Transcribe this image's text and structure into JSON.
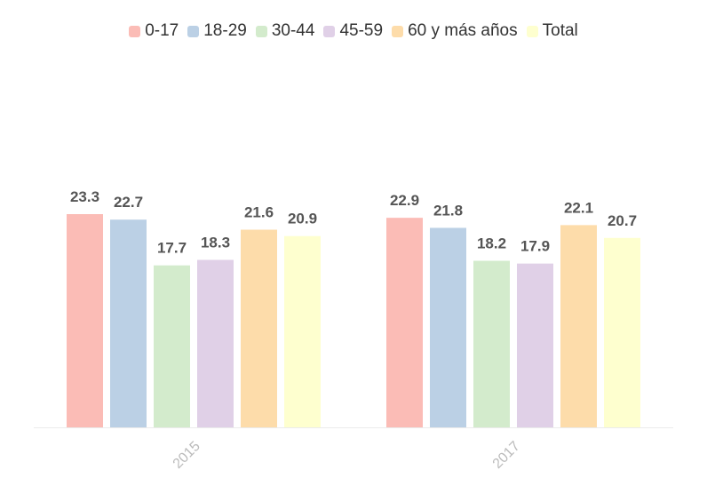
{
  "chart_data": {
    "type": "bar",
    "title": "",
    "xlabel": "",
    "ylabel": "",
    "ylim": [
      0,
      30
    ],
    "grid": false,
    "legend_position": "top-center",
    "categories": [
      "2015",
      "2017"
    ],
    "series": [
      {
        "name": "0-17",
        "color": "#fbbcb6",
        "values": [
          23.3,
          22.9
        ]
      },
      {
        "name": "18-29",
        "color": "#bbd0e5",
        "values": [
          22.7,
          21.8
        ]
      },
      {
        "name": "30-44",
        "color": "#d3ebcc",
        "values": [
          17.7,
          18.2
        ]
      },
      {
        "name": "45-59",
        "color": "#e0d0e7",
        "values": [
          18.3,
          17.9
        ]
      },
      {
        "name": "60 y más años",
        "color": "#fddcaa",
        "values": [
          21.6,
          22.1
        ]
      },
      {
        "name": "Total",
        "color": "#feffcf",
        "values": [
          20.9,
          20.7
        ]
      }
    ],
    "value_labels": [
      [
        "23.3",
        "22.9"
      ],
      [
        "22.7",
        "21.8"
      ],
      [
        "17.7",
        "18.2"
      ],
      [
        "18.3",
        "17.9"
      ],
      [
        "21.6",
        "22.1"
      ],
      [
        "20.9",
        "20.7"
      ]
    ]
  }
}
